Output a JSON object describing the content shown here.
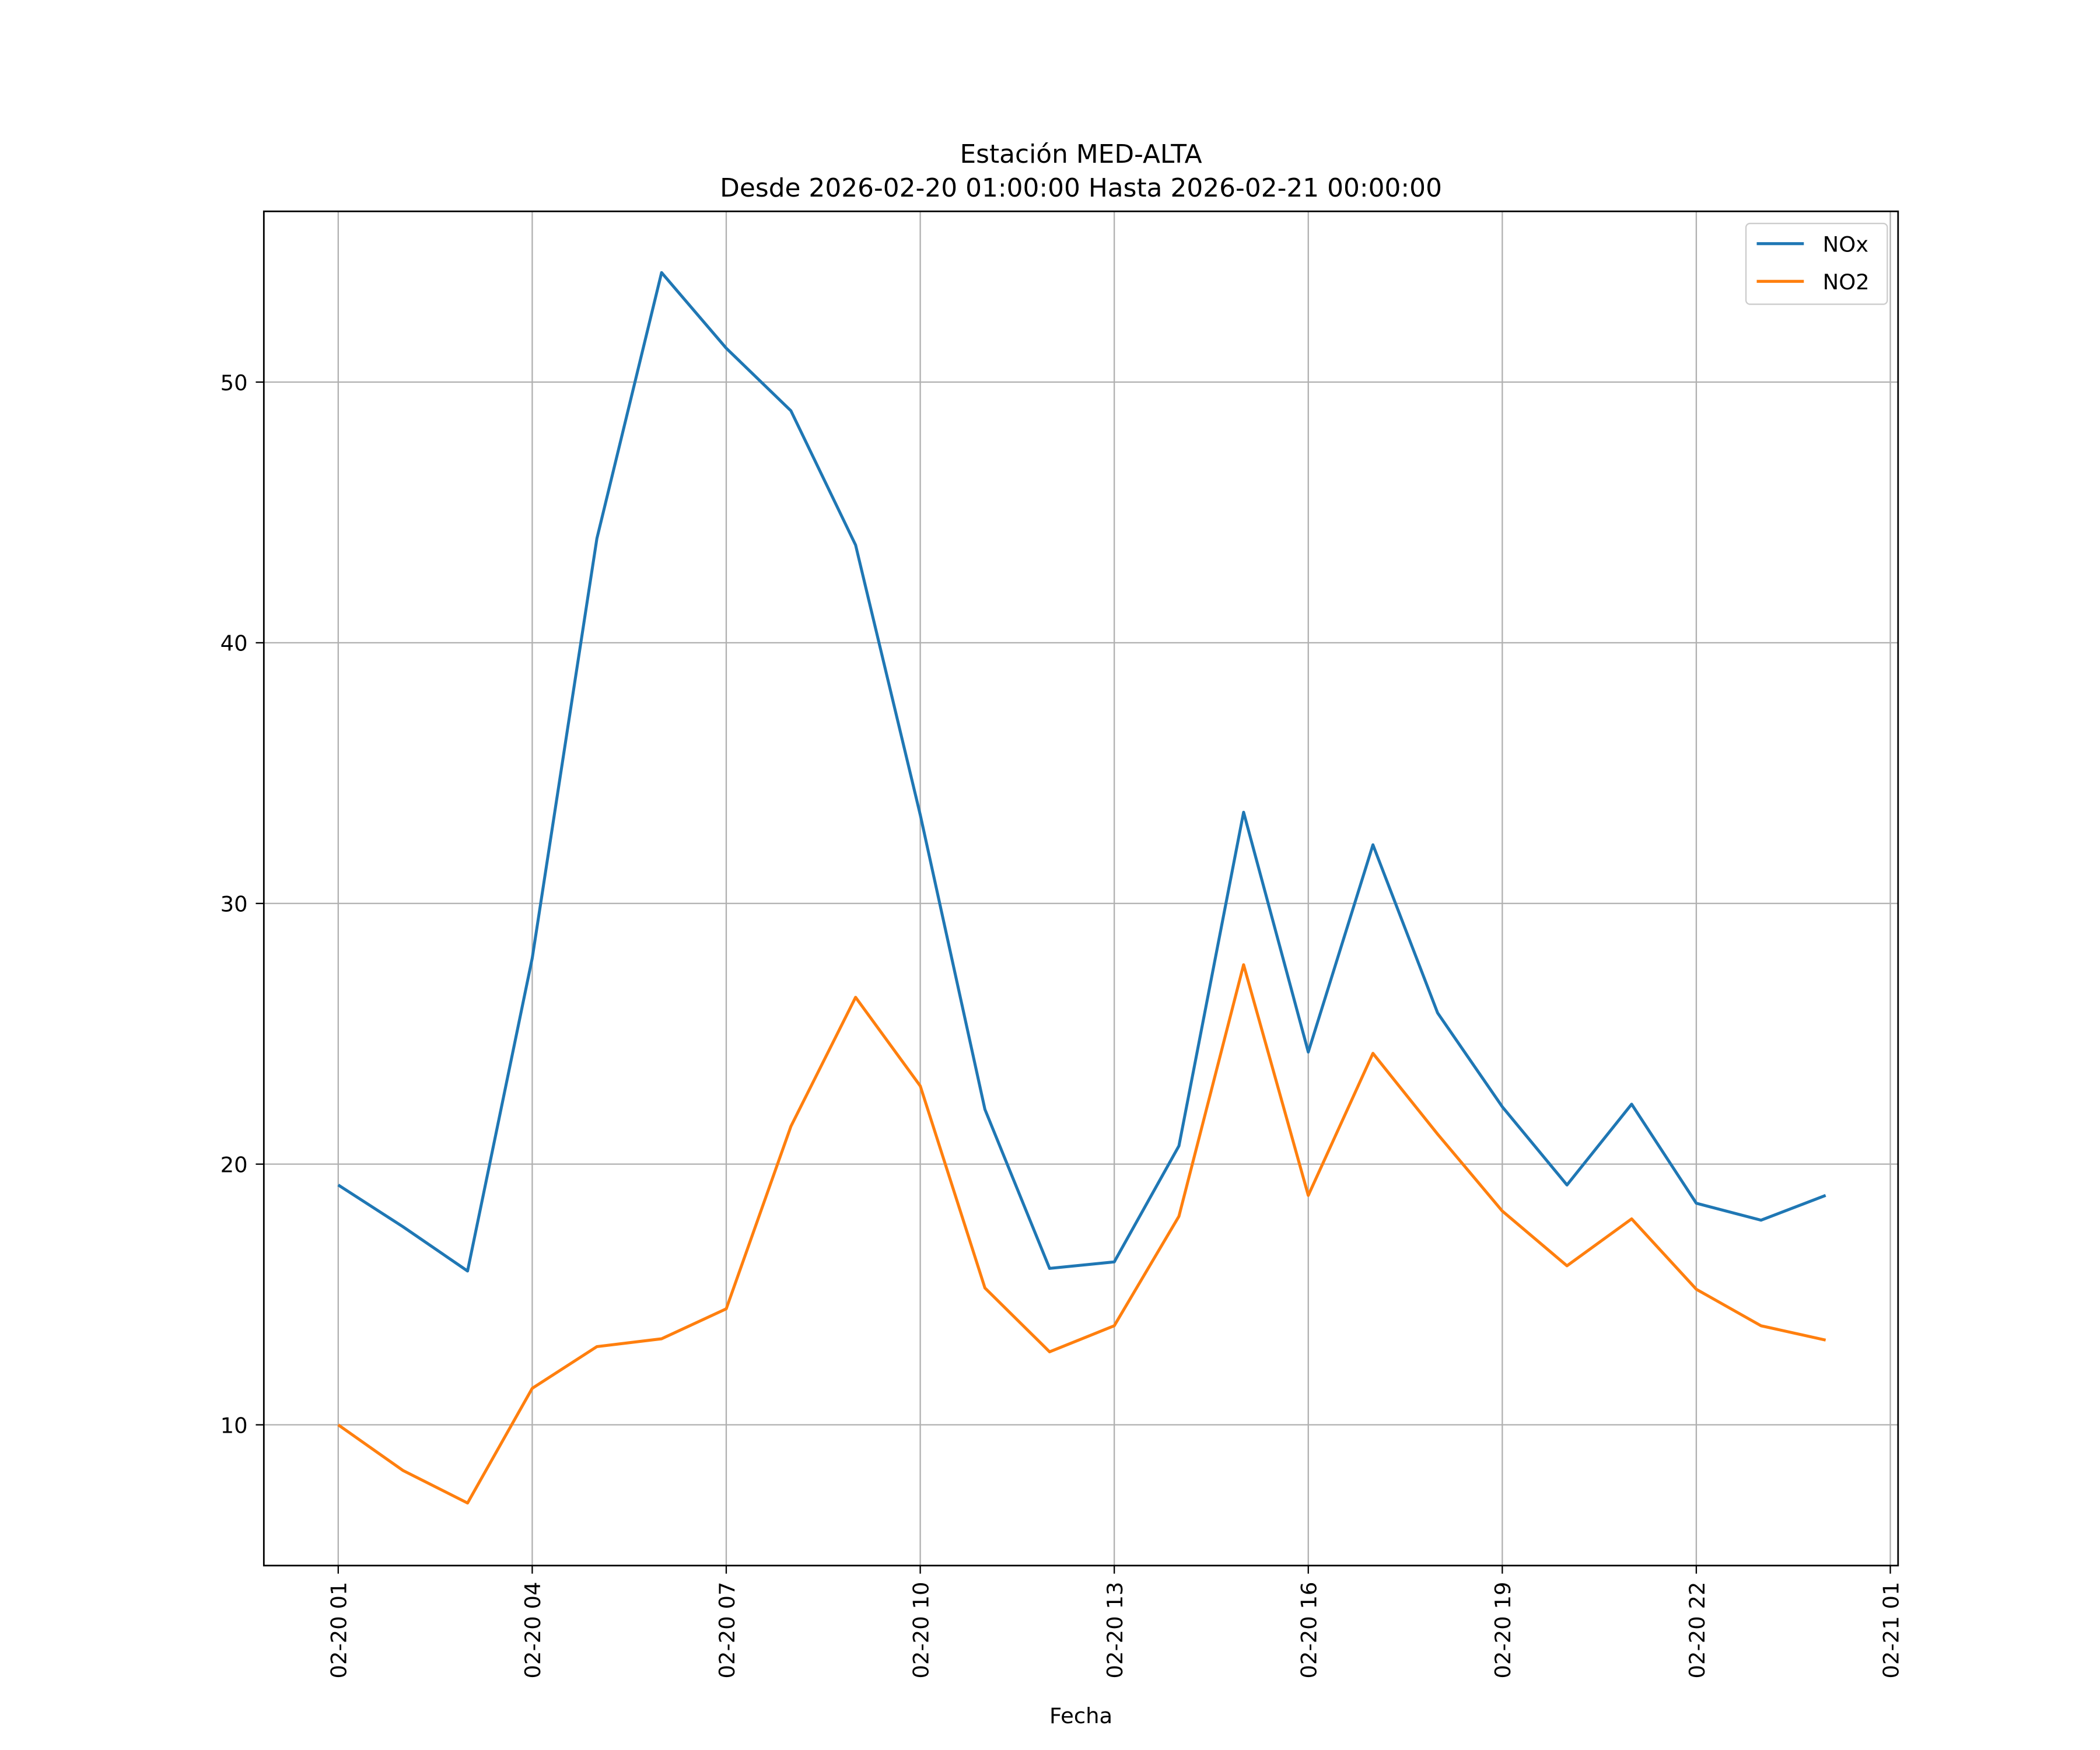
{
  "chart_data": {
    "type": "line",
    "title": "Estación MED-ALTA",
    "subtitle": "Desde 2026-02-20 01:00:00 Hasta 2026-02-21 00:00:00",
    "xlabel": "Fecha",
    "ylabel": "",
    "x_hours_from_start": [
      0,
      1,
      2,
      3,
      4,
      5,
      6,
      7,
      8,
      9,
      10,
      11,
      12,
      13,
      14,
      15,
      16,
      17,
      18,
      19,
      20,
      21,
      22,
      23
    ],
    "xlim_hours": [
      -1.15,
      24.12
    ],
    "ylim": [
      4.6,
      56.55
    ],
    "grid": true,
    "legend_position": "top-right",
    "xticks": [
      {
        "hour": 0,
        "label": "02-20 01"
      },
      {
        "hour": 3,
        "label": "02-20 04"
      },
      {
        "hour": 6,
        "label": "02-20 07"
      },
      {
        "hour": 9,
        "label": "02-20 10"
      },
      {
        "hour": 12,
        "label": "02-20 13"
      },
      {
        "hour": 15,
        "label": "02-20 16"
      },
      {
        "hour": 18,
        "label": "02-20 19"
      },
      {
        "hour": 21,
        "label": "02-20 22"
      },
      {
        "hour": 24,
        "label": "02-21 01"
      }
    ],
    "yticks": [
      {
        "value": 10,
        "label": "10"
      },
      {
        "value": 20,
        "label": "20"
      },
      {
        "value": 30,
        "label": "30"
      },
      {
        "value": 40,
        "label": "40"
      },
      {
        "value": 50,
        "label": "50"
      }
    ],
    "series": [
      {
        "name": "NOx",
        "color": "#1f77b4",
        "values": [
          19.2,
          17.6,
          15.9,
          27.9,
          44.0,
          54.2,
          51.3,
          48.9,
          43.75,
          33.4,
          22.1,
          16.0,
          16.25,
          20.7,
          33.5,
          24.3,
          32.25,
          25.8,
          22.2,
          19.2,
          22.3,
          18.5,
          17.85,
          18.8
        ]
      },
      {
        "name": "NO2",
        "color": "#ff7f0e",
        "values": [
          10.0,
          8.25,
          7.0,
          11.4,
          13.0,
          13.3,
          14.45,
          21.45,
          26.4,
          23.0,
          15.25,
          12.8,
          13.8,
          18.0,
          27.65,
          18.8,
          24.25,
          21.15,
          18.2,
          16.1,
          17.9,
          15.2,
          13.8,
          13.25
        ]
      }
    ]
  }
}
